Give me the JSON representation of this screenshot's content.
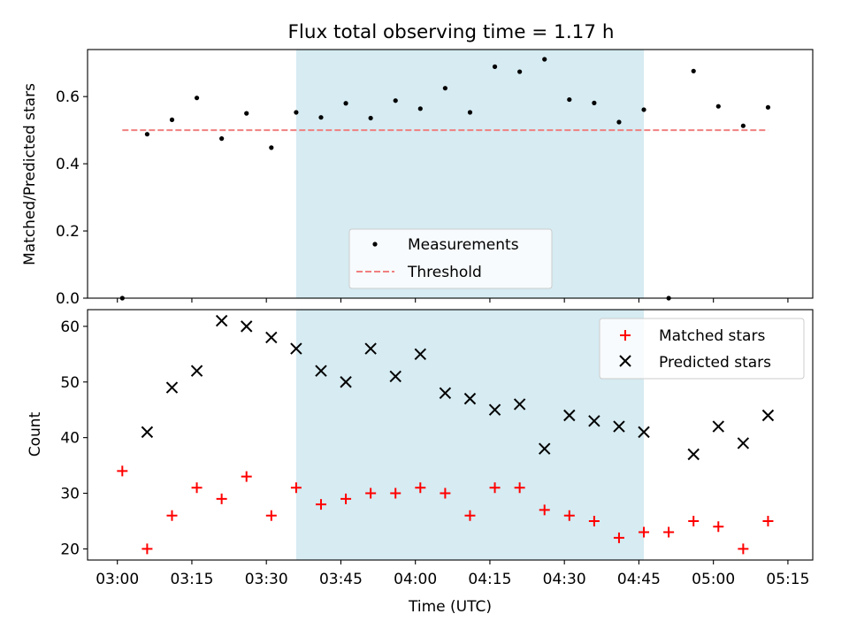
{
  "chart_data": [
    {
      "type": "scatter",
      "title": "Flux total observing time = 1.17 h",
      "ylabel": "Matched/Predicted stars",
      "xlabel": "",
      "xlim": [
        "02:54",
        "05:20"
      ],
      "ylim": [
        0,
        0.74
      ],
      "yticks": [
        0.0,
        0.2,
        0.4,
        0.6
      ],
      "ytick_labels": [
        "0.0",
        "0.2",
        "0.4",
        "0.6"
      ],
      "grid": false,
      "highlight_band": {
        "from": "03:36",
        "to": "04:46",
        "color": "#add8e6"
      },
      "legend": {
        "placement": "lower center",
        "entries": [
          "Measurements",
          "Threshold"
        ]
      },
      "series": [
        {
          "name": "Measurements",
          "marker": "dot",
          "color": "#000000",
          "x": [
            "03:01",
            "03:06",
            "03:11",
            "03:16",
            "03:21",
            "03:26",
            "03:31",
            "03:36",
            "03:41",
            "03:46",
            "03:51",
            "03:56",
            "04:01",
            "04:06",
            "04:11",
            "04:16",
            "04:21",
            "04:26",
            "04:31",
            "04:36",
            "04:41",
            "04:46",
            "04:51",
            "04:56",
            "05:01",
            "05:06",
            "05:11"
          ],
          "y": [
            0.0,
            0.488,
            0.531,
            0.596,
            0.475,
            0.55,
            0.448,
            0.553,
            0.538,
            0.58,
            0.536,
            0.588,
            0.564,
            0.625,
            0.553,
            0.689,
            0.674,
            0.711,
            0.591,
            0.581,
            0.524,
            0.561,
            0.0,
            0.676,
            0.571,
            0.513,
            0.568
          ]
        },
        {
          "name": "Threshold",
          "marker": "dashed-line",
          "color": "#f08080",
          "x": [
            "03:01",
            "05:11"
          ],
          "y": [
            0.5,
            0.5
          ]
        }
      ]
    },
    {
      "type": "scatter",
      "title": "",
      "ylabel": "Count",
      "xlabel": "Time (UTC)",
      "xlim": [
        "02:54",
        "05:20"
      ],
      "ylim": [
        18,
        63
      ],
      "yticks": [
        20,
        30,
        40,
        50,
        60
      ],
      "ytick_labels": [
        "20",
        "30",
        "40",
        "50",
        "60"
      ],
      "xticks": [
        "03:00",
        "03:15",
        "03:30",
        "03:45",
        "04:00",
        "04:15",
        "04:30",
        "04:45",
        "05:00",
        "05:15"
      ],
      "xtick_labels": [
        "03:00",
        "03:15",
        "03:30",
        "03:45",
        "04:00",
        "04:15",
        "04:30",
        "04:45",
        "05:00",
        "05:15"
      ],
      "grid": false,
      "highlight_band": {
        "from": "03:36",
        "to": "04:46",
        "color": "#add8e6"
      },
      "legend": {
        "placement": "upper right",
        "entries": [
          "Matched stars",
          "Predicted stars"
        ]
      },
      "series": [
        {
          "name": "Matched stars",
          "marker": "plus",
          "color": "#ff0000",
          "x": [
            "03:01",
            "03:06",
            "03:11",
            "03:16",
            "03:21",
            "03:26",
            "03:31",
            "03:36",
            "03:41",
            "03:46",
            "03:51",
            "03:56",
            "04:01",
            "04:06",
            "04:11",
            "04:16",
            "04:21",
            "04:26",
            "04:31",
            "04:36",
            "04:41",
            "04:46",
            "04:51",
            "04:56",
            "05:01",
            "05:06",
            "05:11"
          ],
          "y": [
            34,
            20,
            26,
            31,
            29,
            33,
            26,
            31,
            28,
            29,
            30,
            30,
            31,
            30,
            26,
            31,
            31,
            27,
            26,
            25,
            22,
            23,
            23,
            25,
            24,
            20,
            25
          ]
        },
        {
          "name": "Predicted stars",
          "marker": "x",
          "color": "#000000",
          "x": [
            "03:06",
            "03:11",
            "03:16",
            "03:21",
            "03:26",
            "03:31",
            "03:36",
            "03:41",
            "03:46",
            "03:51",
            "03:56",
            "04:01",
            "04:06",
            "04:11",
            "04:16",
            "04:21",
            "04:26",
            "04:31",
            "04:36",
            "04:41",
            "04:46",
            "04:56",
            "05:01",
            "05:06",
            "05:11"
          ],
          "y": [
            41,
            49,
            52,
            61,
            60,
            58,
            56,
            52,
            50,
            56,
            51,
            55,
            48,
            47,
            45,
            46,
            38,
            44,
            43,
            42,
            41,
            37,
            42,
            39,
            44
          ]
        }
      ]
    }
  ]
}
